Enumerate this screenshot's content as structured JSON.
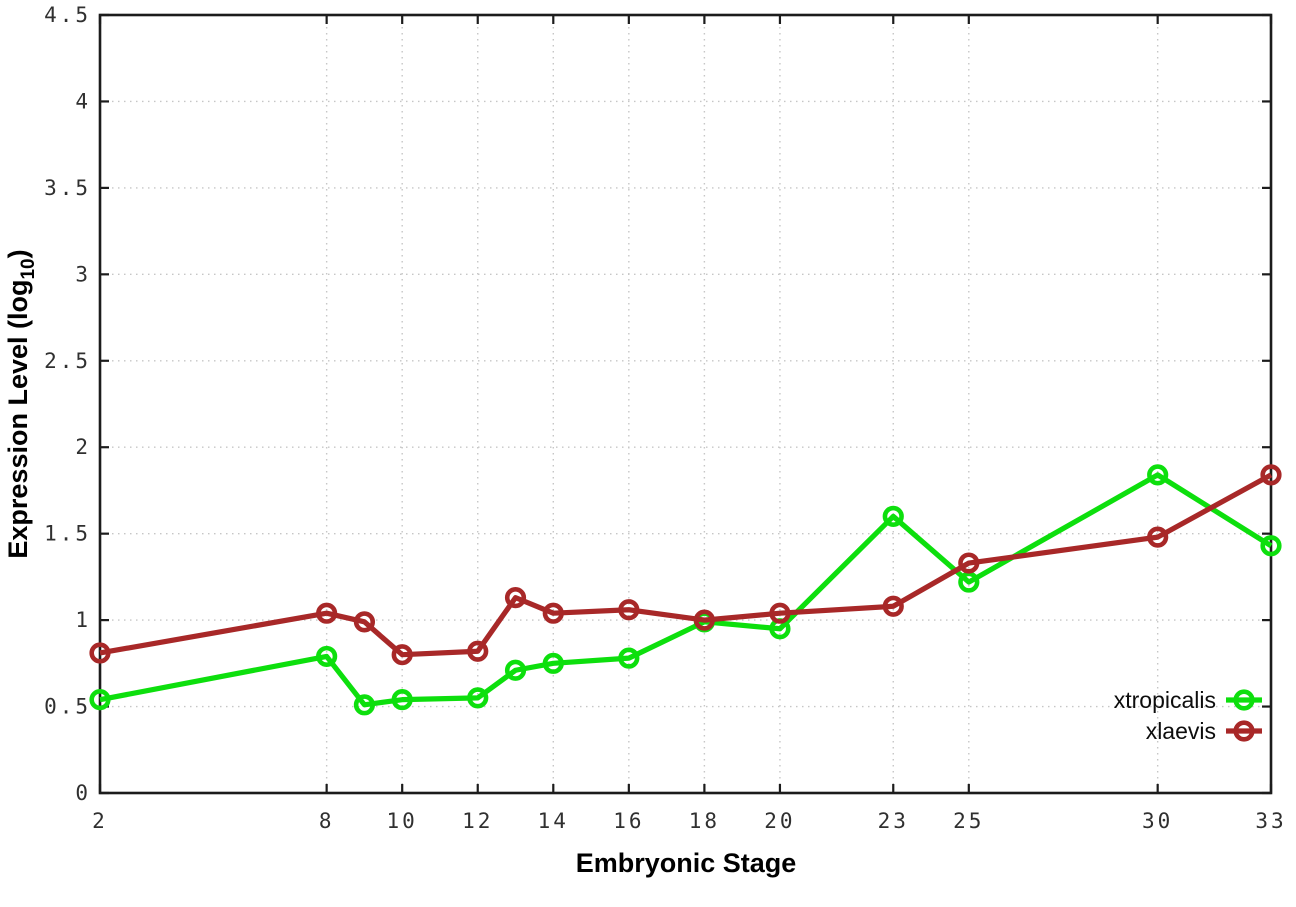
{
  "page": {
    "background": "#ffffff"
  },
  "chart_data": {
    "type": "line",
    "title": "",
    "xlabel": "Embryonic Stage",
    "ylabel": "Expression Level (log10)",
    "ylabel_parts": {
      "main": "Expression Level (log",
      "sub": "10",
      "end": ")"
    },
    "x": [
      2,
      8,
      9,
      10,
      12,
      13,
      14,
      16,
      18,
      20,
      23,
      25,
      30,
      33
    ],
    "series": [
      {
        "name": "xtropicalis",
        "color": "#0ddf0d",
        "marker": "open-circle",
        "values": [
          0.54,
          0.79,
          0.51,
          0.54,
          0.55,
          0.71,
          0.75,
          0.78,
          0.99,
          0.95,
          1.6,
          1.22,
          1.84,
          1.43
        ]
      },
      {
        "name": "xlaevis",
        "color": "#a82828",
        "marker": "open-circle",
        "values": [
          0.81,
          1.04,
          0.99,
          0.8,
          0.82,
          1.13,
          1.04,
          1.06,
          1.0,
          1.04,
          1.08,
          1.33,
          1.48,
          1.84
        ]
      }
    ],
    "xlim": [
      2,
      33
    ],
    "ylim": [
      0,
      4.5
    ],
    "xtick_values": [
      2,
      8,
      10,
      12,
      14,
      16,
      18,
      20,
      23,
      25,
      30,
      33
    ],
    "xtick_labels": [
      "2",
      "8",
      "10",
      "12",
      "14",
      "16",
      "18",
      "20",
      "23",
      "25",
      "30",
      "33"
    ],
    "ytick_values": [
      0,
      0.5,
      1,
      1.5,
      2,
      2.5,
      3,
      3.5,
      4,
      4.5
    ],
    "ytick_labels": [
      "0",
      "0.5",
      "1",
      "1.5",
      "2",
      "2.5",
      "3",
      "3.5",
      "4",
      "4.5"
    ],
    "grid": true,
    "grid_style": "dotted",
    "grid_color": "#c6c6c6",
    "axis_color": "#1c1c1c",
    "tick_label_color": "#303030",
    "legend": {
      "position": "inside-bottom-right",
      "entries": [
        "xtropicalis",
        "xlaevis"
      ]
    }
  }
}
